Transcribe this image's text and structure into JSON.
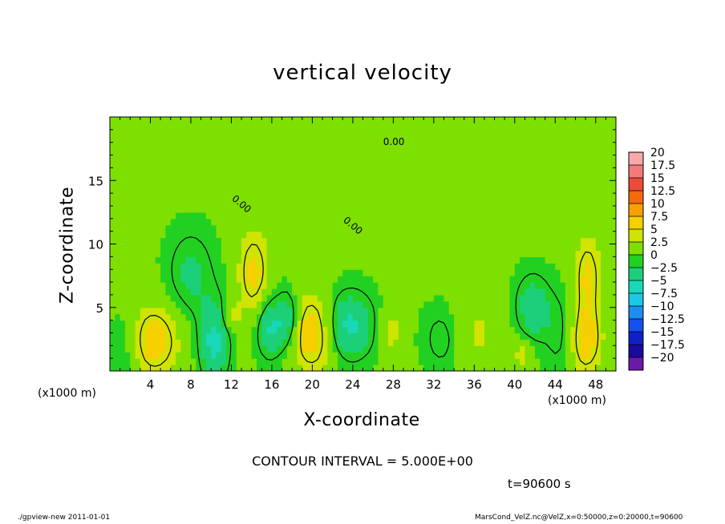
{
  "chart_data": {
    "type": "heatmap",
    "title": "vertical velocity",
    "xlabel": "X-coordinate",
    "ylabel": "Z-coordinate",
    "x_unit": "(x1000 m)",
    "xlim": [
      0,
      50
    ],
    "ylim": [
      0,
      20
    ],
    "x_ticks": [
      4,
      8,
      12,
      16,
      20,
      24,
      28,
      32,
      36,
      40,
      44,
      48
    ],
    "y_ticks": [
      5,
      10,
      15
    ],
    "colorbar": {
      "labels": [
        "20",
        "17.5",
        "15",
        "12.5",
        "10",
        "7.5",
        "5",
        "2.5",
        "0",
        "−2.5",
        "−5",
        "−7.5",
        "−10",
        "−12.5",
        "−15",
        "−17.5",
        "−20"
      ],
      "colors": [
        "#f7a8a8",
        "#f27a7a",
        "#ee4a3a",
        "#f26a10",
        "#f7a000",
        "#f5cf00",
        "#cfe400",
        "#7ee000",
        "#22d022",
        "#1cd07a",
        "#19d8b8",
        "#1ac8e8",
        "#1e8cf0",
        "#1450ee",
        "#1020c8",
        "#1a0a9e",
        "#6a1aa6"
      ],
      "range": [
        -20,
        20
      ],
      "step": 2.5
    },
    "contour_interval": "CONTOUR INTERVAL = 5.000E+00",
    "contour_labels": [
      "0.00",
      "0.00",
      "0.00"
    ],
    "background_value": 1.5,
    "features": [
      {
        "x": 4.3,
        "z": 2.4,
        "w": 6.0,
        "sx": 1.8,
        "sz": 2.0
      },
      {
        "x": 20.0,
        "z": 3.0,
        "w": 6.5,
        "sx": 1.5,
        "sz": 2.2
      },
      {
        "x": 14.2,
        "z": 7.8,
        "w": 5.2,
        "sx": 1.1,
        "sz": 2.5
      },
      {
        "x": 47.0,
        "z": 2.4,
        "w": 5.5,
        "sx": 1.2,
        "sz": 2.0
      },
      {
        "x": 47.2,
        "z": 7.6,
        "w": 4.8,
        "sx": 1.0,
        "sz": 2.3
      },
      {
        "x": 10.3,
        "z": 2.3,
        "w": -6.0,
        "sx": 1.0,
        "sz": 2.2
      },
      {
        "x": 15.8,
        "z": 3.4,
        "w": -5.5,
        "sx": 0.9,
        "sz": 1.6
      },
      {
        "x": 17.6,
        "z": 4.0,
        "w": -5.0,
        "sx": 0.8,
        "sz": 1.6
      },
      {
        "x": 23.6,
        "z": 3.6,
        "w": -6.0,
        "sx": 1.7,
        "sz": 1.8
      },
      {
        "x": 41.8,
        "z": 5.0,
        "w": -4.5,
        "sx": 1.2,
        "sz": 1.8
      },
      {
        "x": 27.8,
        "z": 3.2,
        "w": 3.5,
        "sx": 0.8,
        "sz": 1.2
      },
      {
        "x": 40.8,
        "z": 1.3,
        "w": 3.5,
        "sx": 0.6,
        "sz": 0.8
      },
      {
        "x": 36.0,
        "z": 3.0,
        "w": 2.5,
        "sx": 2.0,
        "sz": 2.0
      },
      {
        "x": 8.0,
        "z": 7.6,
        "w": -3.2,
        "sx": 1.6,
        "sz": 2.4
      },
      {
        "x": 1.6,
        "z": 2.0,
        "w": -2.5,
        "sx": 1.1,
        "sz": 2.0
      },
      {
        "x": 33.0,
        "z": 2.6,
        "w": -2.8,
        "sx": 1.4,
        "sz": 1.8
      },
      {
        "x": 44.5,
        "z": 3.0,
        "w": -2.4,
        "sx": 1.0,
        "sz": 2.2
      },
      {
        "x": 12.0,
        "z": 4.4,
        "w": 3.6,
        "sx": 0.6,
        "sz": 0.8
      }
    ]
  },
  "text": {
    "title": "vertical velocity",
    "xlabel": "X-coordinate",
    "ylabel": "Z-coordinate",
    "x_unit_left": "(x1000 m)",
    "x_unit_right": "(x1000 m)",
    "contour_interval": "CONTOUR INTERVAL = 5.000E+00",
    "time": "t=90600 s",
    "footer_left": "./gpview-new  2011-01-01",
    "footer_right": "MarsCond_VelZ.nc@VelZ,x=0:50000,z=0:20000,t=90600"
  }
}
